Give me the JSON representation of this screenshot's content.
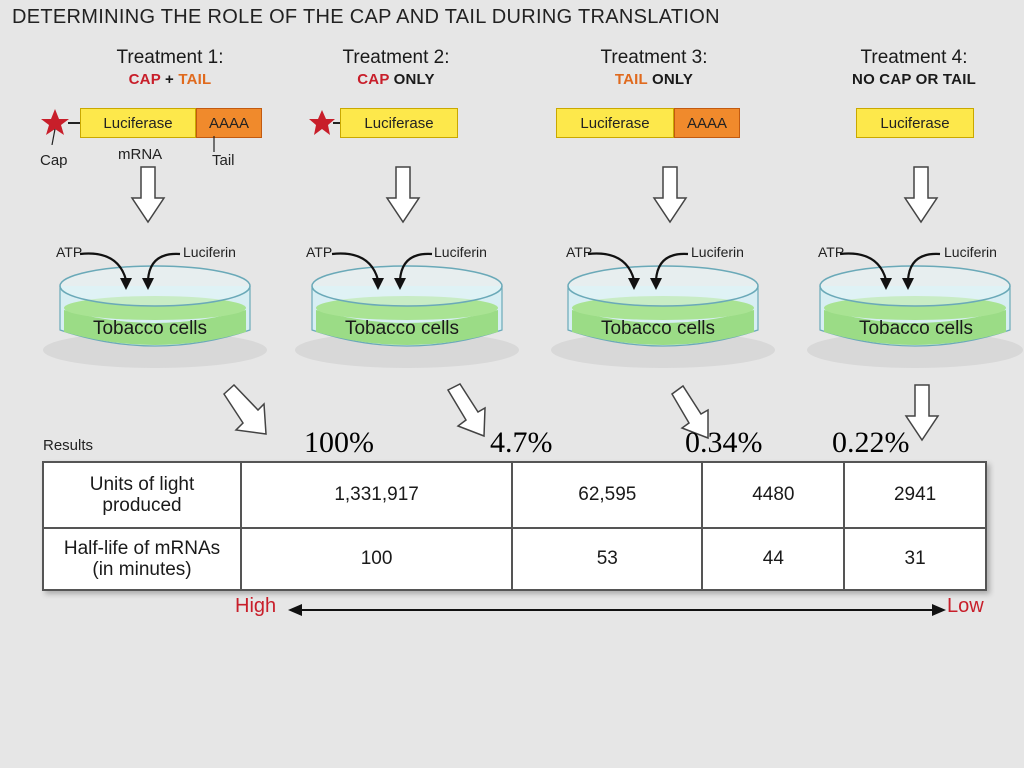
{
  "title": "DETERMINING THE ROLE OF THE CAP AND TAIL DURING TRANSLATION",
  "treatments": [
    {
      "title": "Treatment 1:",
      "cap_word": "CAP",
      "plus": " + ",
      "tail_word": "TAIL",
      "construct_label": "Luciferase",
      "tail_label": "AAAA"
    },
    {
      "title": "Treatment 2:",
      "cap_word": "CAP",
      "only": " ONLY",
      "construct_label": "Luciferase"
    },
    {
      "title": "Treatment 3:",
      "tail_word": "TAIL",
      "only": " ONLY",
      "construct_label": "Luciferase",
      "tail_label": "AAAA"
    },
    {
      "title": "Treatment 4:",
      "sub": "NO CAP OR TAIL",
      "construct_label": "Luciferase"
    }
  ],
  "diagram_labels": {
    "cap": "Cap",
    "mrna": "mRNA",
    "tail": "Tail"
  },
  "dish": {
    "atp": "ATP",
    "luciferin": "Luciferin",
    "cells": "Tobacco cells"
  },
  "percentages": [
    "100%",
    "4.7%",
    "0.34%",
    "0.22%"
  ],
  "results": {
    "label": "Results",
    "rows": [
      {
        "header_line1": "Units of light",
        "header_line2": "produced",
        "values": [
          "1,331,917",
          "62,595",
          "4480",
          "2941"
        ]
      },
      {
        "header_line1": "Half-life of mRNAs",
        "header_line2": "(in minutes)",
        "values": [
          "100",
          "53",
          "44",
          "31"
        ]
      }
    ]
  },
  "scale": {
    "high": "High",
    "low": "Low"
  },
  "colors": {
    "cap_red": "#c81e2a",
    "tail_orange": "#e06a1e",
    "luciferase_yellow": "#fde84b",
    "aaaa_orange": "#f08a2c",
    "cells_green": "#9bdc86",
    "scale_red": "#c81e2a"
  }
}
